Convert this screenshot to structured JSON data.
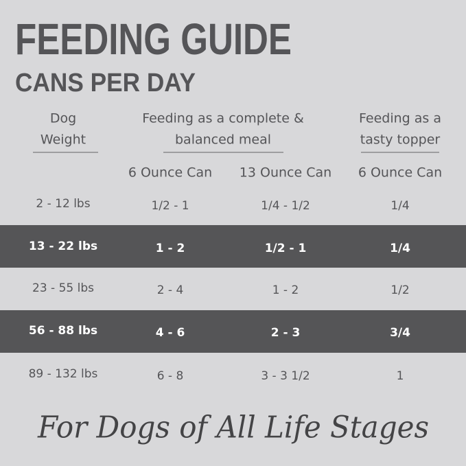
{
  "header": {
    "title": "FEEDING GUIDE",
    "subtitle": "CANS PER DAY"
  },
  "table": {
    "group_headers": [
      {
        "lines": [
          "Dog",
          "Weight"
        ]
      },
      {
        "lines": [
          "Feeding as a complete &",
          "balanced meal"
        ]
      },
      {
        "lines": [
          "Feeding as a",
          "tasty topper"
        ]
      }
    ],
    "column_headers": [
      "6 Ounce Can",
      "13 Ounce Can",
      "6 Ounce Can"
    ],
    "rows": [
      [
        "2 - 12 lbs",
        "1/2 - 1",
        "1/4 - 1/2",
        "1/4"
      ],
      [
        "13 - 22 lbs",
        "1 - 2",
        "1/2 - 1",
        "1/4"
      ],
      [
        "23 - 55 lbs",
        "2 - 4",
        "1 - 2",
        "1/2"
      ],
      [
        "56 - 88 lbs",
        "4 - 6",
        "2 - 3",
        "3/4"
      ],
      [
        "89 - 132 lbs",
        "6 - 8",
        "3 - 3 1/2",
        "1"
      ]
    ]
  },
  "footer": "For Dogs of All Life Stages"
}
